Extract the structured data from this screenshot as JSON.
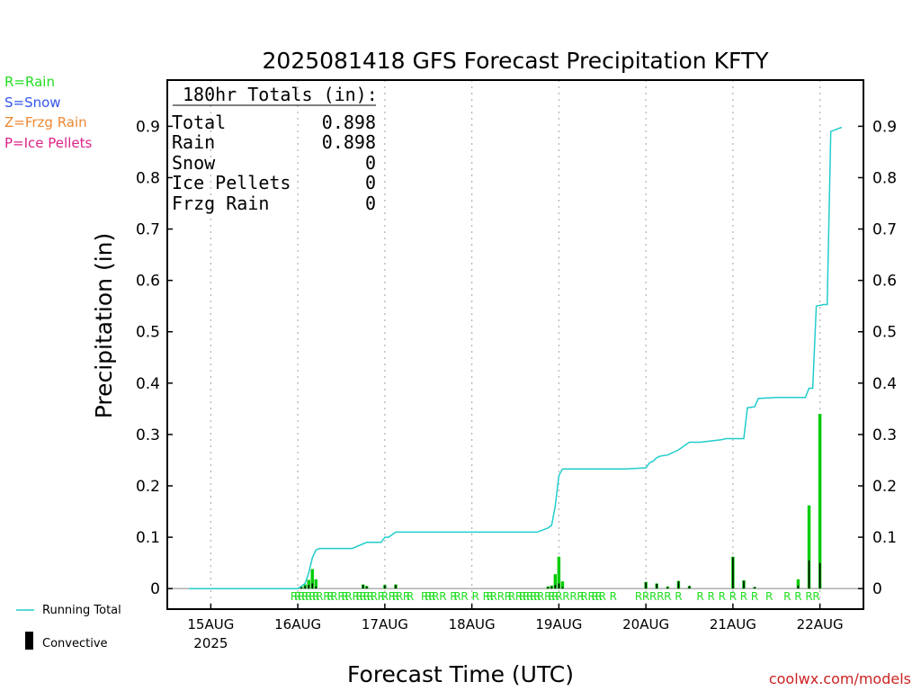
{
  "chart_data": {
    "type": "bar",
    "title": "2025081418 GFS Forecast Precipitation KFTY",
    "xlabel": "Forecast Time (UTC)",
    "ylabel": "Precipitation (in)",
    "credit": "coolwx.com/models",
    "ylim": [
      -0.04,
      0.99
    ],
    "yticks": [
      0,
      0.1,
      0.2,
      0.3,
      0.4,
      0.5,
      0.6,
      0.7,
      0.8,
      0.9
    ],
    "yticklabels": [
      "0",
      "0.1",
      "0.2",
      "0.3",
      "0.4",
      "0.5",
      "0.6",
      "0.7",
      "0.8",
      "0.9"
    ],
    "xlim_hours": [
      -6,
      186
    ],
    "xticks": [
      {
        "label": "15AUG",
        "hour": 6
      },
      {
        "label": "16AUG",
        "hour": 30
      },
      {
        "label": "17AUG",
        "hour": 54
      },
      {
        "label": "18AUG",
        "hour": 78
      },
      {
        "label": "19AUG",
        "hour": 102
      },
      {
        "label": "20AUG",
        "hour": 126
      },
      {
        "label": "21AUG",
        "hour": 150
      },
      {
        "label": "22AUG",
        "hour": 174
      }
    ],
    "year_label": "2025",
    "ptype_legend": [
      {
        "text": "R=Rain",
        "color": "#22dd22"
      },
      {
        "text": "S=Snow",
        "color": "#3355ee"
      },
      {
        "text": "Z=Frzg Rain",
        "color": "#ee8833"
      },
      {
        "text": "P=Ice Pellets",
        "color": "#dd2288"
      }
    ],
    "totals": {
      "header": "180hr Totals (in):",
      "rows": [
        {
          "label": "Total",
          "value": "0.898"
        },
        {
          "label": "Rain",
          "value": "0.898"
        },
        {
          "label": "Snow",
          "value": "0"
        },
        {
          "label": "Ice Pellets",
          "value": "0"
        },
        {
          "label": "Frzg Rain",
          "value": "0"
        }
      ]
    },
    "series": [
      {
        "name": "Running Total",
        "type": "line",
        "color": "#22cccc",
        "x": [
          0,
          30,
          31,
          32,
          33,
          34,
          35,
          36,
          39,
          45,
          49,
          51,
          53,
          54,
          55,
          57,
          60,
          96,
          99,
          100,
          101,
          102,
          103,
          105,
          120,
          126,
          127,
          128,
          129,
          130,
          132,
          135,
          137,
          138,
          141,
          147,
          148,
          150,
          153,
          154,
          156,
          157,
          162,
          170,
          171,
          172,
          173,
          175,
          176,
          177,
          180
        ],
        "values": [
          0,
          0,
          0.005,
          0.01,
          0.03,
          0.06,
          0.075,
          0.078,
          0.078,
          0.078,
          0.09,
          0.09,
          0.09,
          0.1,
          0.1,
          0.11,
          0.11,
          0.11,
          0.118,
          0.123,
          0.16,
          0.22,
          0.233,
          0.233,
          0.233,
          0.235,
          0.245,
          0.248,
          0.255,
          0.258,
          0.26,
          0.27,
          0.28,
          0.285,
          0.285,
          0.29,
          0.292,
          0.292,
          0.292,
          0.352,
          0.354,
          0.37,
          0.372,
          0.372,
          0.39,
          0.39,
          0.55,
          0.553,
          0.553,
          0.89,
          0.898
        ]
      },
      {
        "name": "Precip",
        "type": "bar",
        "color": "#00cc00",
        "x": [
          31,
          32,
          33,
          34,
          35,
          48,
          49,
          54,
          57,
          99,
          100,
          101,
          102,
          103,
          126,
          129,
          132,
          135,
          138,
          150,
          153,
          156,
          168,
          171,
          174
        ],
        "values": [
          0.003,
          0.008,
          0.017,
          0.038,
          0.018,
          0.008,
          0.005,
          0.007,
          0.008,
          0.004,
          0.006,
          0.028,
          0.062,
          0.014,
          0.013,
          0.01,
          0.004,
          0.015,
          0.005,
          0.062,
          0.016,
          0.003,
          0.018,
          0.162,
          0.34
        ]
      },
      {
        "name": "Convective",
        "type": "bar",
        "color": "#000000",
        "x": [
          31,
          32,
          33,
          34,
          35,
          48,
          49,
          54,
          57,
          99,
          100,
          101,
          102,
          103,
          126,
          129,
          132,
          135,
          138,
          150,
          153,
          156,
          168,
          171,
          174
        ],
        "values": [
          0.003,
          0.005,
          0.007,
          0.01,
          0.004,
          0.007,
          0.004,
          0.006,
          0.007,
          0.003,
          0.004,
          0.007,
          0.01,
          0.003,
          0.012,
          0.009,
          0.003,
          0.014,
          0.005,
          0.061,
          0.015,
          0.003,
          0.006,
          0.055,
          0.05
        ]
      }
    ],
    "ptype_marks": {
      "letter": "R",
      "color": "#22dd22",
      "hours": [
        29,
        30,
        31,
        32,
        33,
        34,
        35,
        36,
        38,
        39,
        40,
        42,
        43,
        44,
        46,
        47,
        48,
        49,
        50,
        51,
        53,
        54,
        56,
        57,
        58,
        60,
        61,
        65,
        66,
        67,
        68,
        70,
        73,
        74,
        76,
        79,
        82,
        83,
        84,
        86,
        88,
        89,
        91,
        92,
        93,
        94,
        95,
        96,
        97,
        99,
        100,
        101,
        102,
        104,
        106,
        108,
        109,
        111,
        112,
        113,
        114,
        117,
        124,
        126,
        128,
        130,
        132,
        135,
        141,
        144,
        147,
        150,
        153,
        156,
        160,
        165,
        168,
        171,
        173
      ]
    },
    "legend": [
      {
        "label": "Running Total",
        "color": "#22cccc",
        "shape": "line"
      },
      {
        "label": "Convective",
        "color": "#000000",
        "shape": "bar"
      }
    ]
  }
}
